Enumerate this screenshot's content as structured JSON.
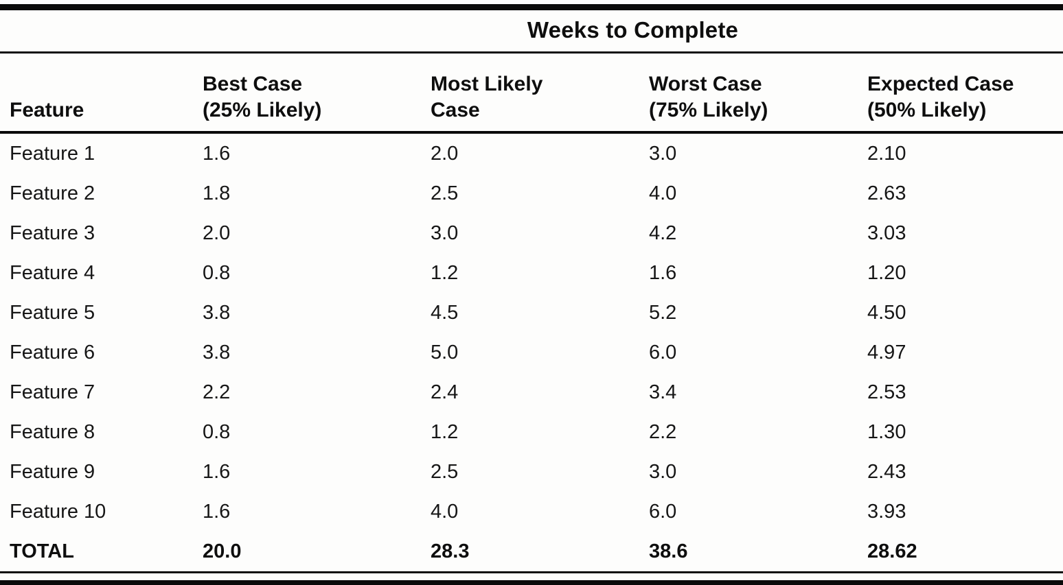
{
  "table": {
    "title": "Weeks to Complete",
    "columns": [
      {
        "label_line1": "Feature",
        "label_line2": ""
      },
      {
        "label_line1": "Best Case",
        "label_line2": "(25% Likely)"
      },
      {
        "label_line1": "Most Likely",
        "label_line2": "Case"
      },
      {
        "label_line1": "Worst Case",
        "label_line2": "(75% Likely)"
      },
      {
        "label_line1": "Expected Case",
        "label_line2": "(50% Likely)"
      }
    ],
    "rows": [
      {
        "feature": "Feature 1",
        "best": "1.6",
        "most_likely": "2.0",
        "worst": "3.0",
        "expected": "2.10"
      },
      {
        "feature": "Feature 2",
        "best": "1.8",
        "most_likely": "2.5",
        "worst": "4.0",
        "expected": "2.63"
      },
      {
        "feature": "Feature 3",
        "best": "2.0",
        "most_likely": "3.0",
        "worst": "4.2",
        "expected": "3.03"
      },
      {
        "feature": "Feature 4",
        "best": "0.8",
        "most_likely": "1.2",
        "worst": "1.6",
        "expected": "1.20"
      },
      {
        "feature": "Feature 5",
        "best": "3.8",
        "most_likely": "4.5",
        "worst": "5.2",
        "expected": "4.50"
      },
      {
        "feature": "Feature 6",
        "best": "3.8",
        "most_likely": "5.0",
        "worst": "6.0",
        "expected": "4.97"
      },
      {
        "feature": "Feature 7",
        "best": "2.2",
        "most_likely": "2.4",
        "worst": "3.4",
        "expected": "2.53"
      },
      {
        "feature": "Feature 8",
        "best": "0.8",
        "most_likely": "1.2",
        "worst": "2.2",
        "expected": "1.30"
      },
      {
        "feature": "Feature 9",
        "best": "1.6",
        "most_likely": "2.5",
        "worst": "3.0",
        "expected": "2.43"
      },
      {
        "feature": "Feature 10",
        "best": "1.6",
        "most_likely": "4.0",
        "worst": "6.0",
        "expected": "3.93"
      }
    ],
    "total": {
      "feature": "TOTAL",
      "best": "20.0",
      "most_likely": "28.3",
      "worst": "38.6",
      "expected": "28.62"
    }
  }
}
